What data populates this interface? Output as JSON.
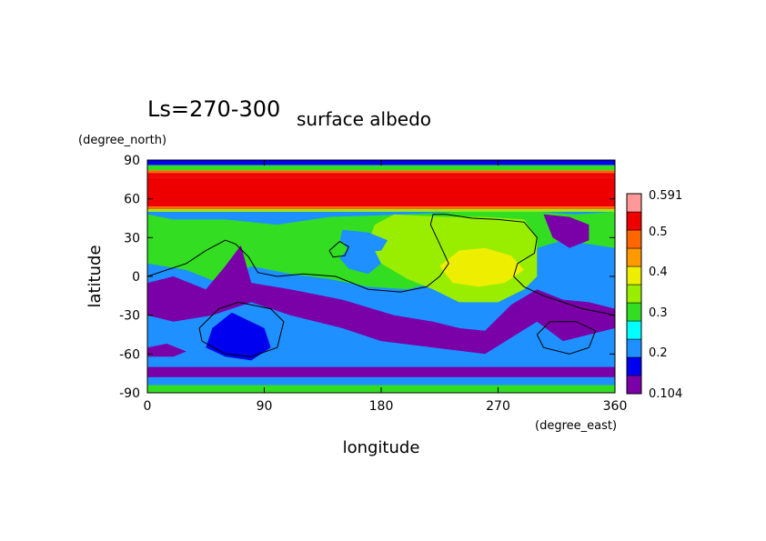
{
  "chart_data": {
    "type": "heatmap",
    "title_left": "Ls=270-300",
    "title_right": "surface albedo",
    "xlabel": "longitude",
    "ylabel": "latitude",
    "x_unit": "(degree_east)",
    "y_unit": "(degree_north)",
    "xlim": [
      0,
      360
    ],
    "ylim": [
      -90,
      90
    ],
    "x_ticks": [
      0,
      90,
      180,
      270,
      360
    ],
    "y_ticks": [
      90,
      60,
      30,
      0,
      -30,
      -60,
      -90
    ],
    "colorbar": {
      "min_label": "0.104",
      "max_label": "0.591",
      "tick_labels": [
        "0.5",
        "0.4",
        "0.3",
        "0.2"
      ],
      "levels": [
        0.104,
        0.15,
        0.2,
        0.25,
        0.3,
        0.35,
        0.4,
        0.45,
        0.5,
        0.55,
        0.591
      ],
      "colors": [
        "#7a00a8",
        "#0000f0",
        "#1e90ff",
        "#00ffff",
        "#33dd22",
        "#99ee00",
        "#eeee00",
        "#ff9900",
        "#ff6600",
        "#ee0000",
        "#ff9999"
      ]
    },
    "bands": [
      {
        "lat_from": 90,
        "lat_to": 86,
        "value": 0.19
      },
      {
        "lat_from": 86,
        "lat_to": 82,
        "value": 0.33
      },
      {
        "lat_from": 82,
        "lat_to": 80,
        "value": 0.5
      },
      {
        "lat_from": 80,
        "lat_to": 78,
        "value": 0.57
      },
      {
        "lat_from": 78,
        "lat_to": 76,
        "value": 0.55
      },
      {
        "lat_from": 76,
        "lat_to": 54,
        "value": 0.591
      },
      {
        "lat_from": 54,
        "lat_to": 52,
        "value": 0.52
      },
      {
        "lat_from": 52,
        "lat_to": 50,
        "value": 0.36
      },
      {
        "lat_from": 50,
        "lat_to": -90,
        "value": 0.2
      }
    ],
    "regions": [
      {
        "value": 0.3,
        "points": [
          [
            0,
            48
          ],
          [
            20,
            44
          ],
          [
            60,
            44
          ],
          [
            100,
            40
          ],
          [
            140,
            46
          ],
          [
            200,
            48
          ],
          [
            240,
            50
          ],
          [
            300,
            50
          ],
          [
            330,
            48
          ],
          [
            360,
            50
          ],
          [
            360,
            22
          ],
          [
            320,
            28
          ],
          [
            300,
            22
          ],
          [
            280,
            26
          ],
          [
            270,
            10
          ],
          [
            240,
            0
          ],
          [
            200,
            -10
          ],
          [
            170,
            -8
          ],
          [
            140,
            -2
          ],
          [
            110,
            2
          ],
          [
            80,
            8
          ],
          [
            55,
            -5
          ],
          [
            30,
            5
          ],
          [
            0,
            10
          ]
        ]
      },
      {
        "value": 0.104,
        "points": [
          [
            0,
            -5
          ],
          [
            20,
            0
          ],
          [
            45,
            -10
          ],
          [
            60,
            8
          ],
          [
            72,
            24
          ],
          [
            80,
            -5
          ],
          [
            110,
            -10
          ],
          [
            150,
            -18
          ],
          [
            190,
            -30
          ],
          [
            220,
            -35
          ],
          [
            240,
            -40
          ],
          [
            260,
            -42
          ],
          [
            280,
            -22
          ],
          [
            300,
            -10
          ],
          [
            320,
            -18
          ],
          [
            340,
            -20
          ],
          [
            360,
            -25
          ],
          [
            360,
            -40
          ],
          [
            320,
            -50
          ],
          [
            300,
            -35
          ],
          [
            260,
            -60
          ],
          [
            220,
            -55
          ],
          [
            180,
            -50
          ],
          [
            150,
            -40
          ],
          [
            110,
            -30
          ],
          [
            80,
            -20
          ],
          [
            50,
            -30
          ],
          [
            20,
            -35
          ],
          [
            0,
            -30
          ]
        ]
      },
      {
        "value": 0.15,
        "points": [
          [
            50,
            -40
          ],
          [
            65,
            -28
          ],
          [
            90,
            -40
          ],
          [
            95,
            -55
          ],
          [
            80,
            -65
          ],
          [
            60,
            -62
          ],
          [
            45,
            -55
          ]
        ]
      },
      {
        "value": 0.2,
        "points": [
          [
            100,
            -42
          ],
          [
            125,
            -40
          ],
          [
            140,
            -50
          ],
          [
            120,
            -55
          ],
          [
            105,
            -52
          ]
        ]
      },
      {
        "value": 0.104,
        "points": [
          [
            0,
            -55
          ],
          [
            15,
            -52
          ],
          [
            30,
            -58
          ],
          [
            20,
            -62
          ],
          [
            0,
            -62
          ]
        ]
      },
      {
        "value": 0.104,
        "points": [
          [
            305,
            48
          ],
          [
            325,
            46
          ],
          [
            340,
            40
          ],
          [
            340,
            28
          ],
          [
            325,
            22
          ],
          [
            312,
            30
          ]
        ]
      },
      {
        "value": 0.104,
        "points": [
          [
            5,
            -30
          ],
          [
            40,
            -28
          ],
          [
            60,
            -20
          ],
          [
            30,
            -22
          ],
          [
            5,
            -22
          ]
        ]
      },
      {
        "value": 0.35,
        "points": [
          [
            190,
            48
          ],
          [
            230,
            46
          ],
          [
            260,
            46
          ],
          [
            290,
            44
          ],
          [
            300,
            30
          ],
          [
            300,
            0
          ],
          [
            290,
            -10
          ],
          [
            270,
            -20
          ],
          [
            240,
            -20
          ],
          [
            220,
            -10
          ],
          [
            200,
            -2
          ],
          [
            180,
            10
          ],
          [
            170,
            26
          ],
          [
            175,
            40
          ]
        ]
      },
      {
        "value": 0.2,
        "points": [
          [
            150,
            36
          ],
          [
            170,
            34
          ],
          [
            185,
            28
          ],
          [
            180,
            20
          ],
          [
            160,
            18
          ],
          [
            148,
            26
          ]
        ]
      },
      {
        "value": 0.2,
        "points": [
          [
            155,
            22
          ],
          [
            175,
            20
          ],
          [
            180,
            10
          ],
          [
            170,
            2
          ],
          [
            155,
            6
          ],
          [
            148,
            14
          ]
        ]
      },
      {
        "value": 0.3,
        "points": [
          [
            140,
            28
          ],
          [
            152,
            26
          ],
          [
            150,
            18
          ],
          [
            140,
            18
          ]
        ]
      },
      {
        "value": 0.4,
        "points": [
          [
            225,
            8
          ],
          [
            240,
            20
          ],
          [
            260,
            22
          ],
          [
            280,
            16
          ],
          [
            290,
            5
          ],
          [
            275,
            -5
          ],
          [
            255,
            -8
          ],
          [
            235,
            -5
          ]
        ]
      },
      {
        "value": 0.104,
        "points": [
          [
            0,
            -70
          ],
          [
            360,
            -70
          ],
          [
            360,
            -78
          ],
          [
            0,
            -78
          ]
        ]
      },
      {
        "value": 0.2,
        "points": [
          [
            0,
            -78
          ],
          [
            360,
            -78
          ],
          [
            360,
            -84
          ],
          [
            0,
            -84
          ]
        ]
      },
      {
        "value": 0.3,
        "points": [
          [
            0,
            -84
          ],
          [
            360,
            -84
          ],
          [
            360,
            -90
          ],
          [
            0,
            -90
          ]
        ]
      }
    ],
    "contours": [
      [
        [
          0,
          0
        ],
        [
          15,
          5
        ],
        [
          30,
          10
        ],
        [
          45,
          20
        ],
        [
          60,
          28
        ],
        [
          68,
          25
        ],
        [
          78,
          15
        ],
        [
          85,
          3
        ],
        [
          100,
          0
        ],
        [
          120,
          2
        ],
        [
          145,
          0
        ],
        [
          170,
          -10
        ],
        [
          195,
          -12
        ],
        [
          215,
          -8
        ],
        [
          225,
          0
        ],
        [
          232,
          10
        ],
        [
          225,
          25
        ],
        [
          218,
          40
        ],
        [
          220,
          48
        ],
        [
          230,
          48
        ],
        [
          250,
          45
        ],
        [
          270,
          44
        ],
        [
          290,
          42
        ],
        [
          300,
          30
        ],
        [
          298,
          18
        ],
        [
          285,
          10
        ],
        [
          282,
          0
        ],
        [
          290,
          -8
        ],
        [
          305,
          -15
        ],
        [
          320,
          -20
        ],
        [
          335,
          -25
        ],
        [
          350,
          -28
        ],
        [
          360,
          -30
        ]
      ],
      [
        [
          40,
          -40
        ],
        [
          55,
          -25
        ],
        [
          70,
          -20
        ],
        [
          95,
          -25
        ],
        [
          105,
          -35
        ],
        [
          100,
          -55
        ],
        [
          80,
          -62
        ],
        [
          60,
          -60
        ],
        [
          42,
          -50
        ],
        [
          40,
          -40
        ]
      ],
      [
        [
          300,
          -45
        ],
        [
          310,
          -35
        ],
        [
          330,
          -35
        ],
        [
          345,
          -42
        ],
        [
          340,
          -55
        ],
        [
          325,
          -60
        ],
        [
          305,
          -55
        ],
        [
          300,
          -45
        ]
      ],
      [
        [
          140,
          20
        ],
        [
          148,
          27
        ],
        [
          155,
          23
        ],
        [
          152,
          16
        ],
        [
          143,
          15
        ],
        [
          140,
          20
        ]
      ]
    ]
  }
}
